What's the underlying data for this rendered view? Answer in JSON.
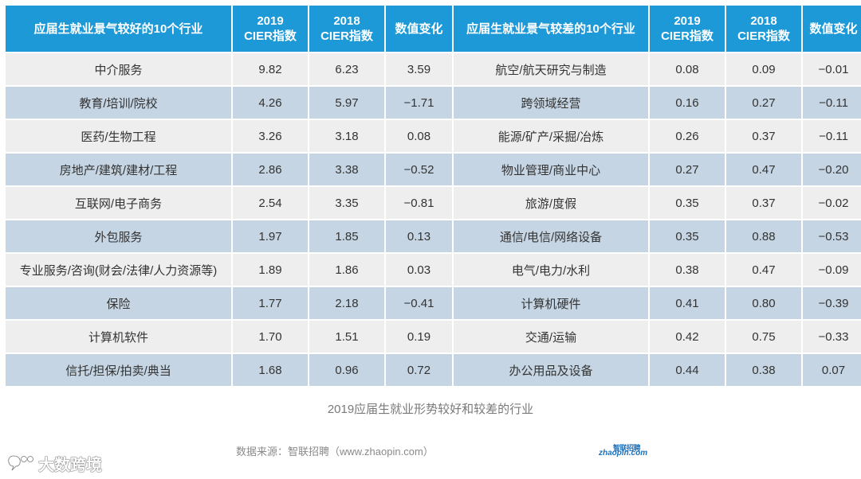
{
  "header": {
    "good_industry": "应届生就业景气较好的10个行业",
    "good_2019_l1": "2019",
    "good_2019_l2": "CIER指数",
    "good_2018_l1": "2018",
    "good_2018_l2": "CIER指数",
    "good_change": "数值变化",
    "bad_industry": "应届生就业景气较差的10个行业",
    "bad_2019_l1": "2019",
    "bad_2019_l2": "CIER指数",
    "bad_2018_l1": "2018",
    "bad_2018_l2": "CIER指数",
    "bad_change": "数值变化"
  },
  "rows": [
    {
      "good_name": "中介服务",
      "good_2019": "9.82",
      "good_2018": "6.23",
      "good_change": "3.59",
      "bad_name": "航空/航天研究与制造",
      "bad_2019": "0.08",
      "bad_2018": "0.09",
      "bad_change": "−0.01"
    },
    {
      "good_name": "教育/培训/院校",
      "good_2019": "4.26",
      "good_2018": "5.97",
      "good_change": "−1.71",
      "bad_name": "跨领域经营",
      "bad_2019": "0.16",
      "bad_2018": "0.27",
      "bad_change": "−0.11"
    },
    {
      "good_name": "医药/生物工程",
      "good_2019": "3.26",
      "good_2018": "3.18",
      "good_change": "0.08",
      "bad_name": "能源/矿产/采掘/冶炼",
      "bad_2019": "0.26",
      "bad_2018": "0.37",
      "bad_change": "−0.11"
    },
    {
      "good_name": "房地产/建筑/建材/工程",
      "good_2019": "2.86",
      "good_2018": "3.38",
      "good_change": "−0.52",
      "bad_name": "物业管理/商业中心",
      "bad_2019": "0.27",
      "bad_2018": "0.47",
      "bad_change": "−0.20"
    },
    {
      "good_name": "互联网/电子商务",
      "good_2019": "2.54",
      "good_2018": "3.35",
      "good_change": "−0.81",
      "bad_name": "旅游/度假",
      "bad_2019": "0.35",
      "bad_2018": "0.37",
      "bad_change": "−0.02"
    },
    {
      "good_name": "外包服务",
      "good_2019": "1.97",
      "good_2018": "1.85",
      "good_change": "0.13",
      "bad_name": "通信/电信/网络设备",
      "bad_2019": "0.35",
      "bad_2018": "0.88",
      "bad_change": "−0.53"
    },
    {
      "good_name": "专业服务/咨询(财会/法律/人力资源等)",
      "good_2019": "1.89",
      "good_2018": "1.86",
      "good_change": "0.03",
      "bad_name": "电气/电力/水利",
      "bad_2019": "0.38",
      "bad_2018": "0.47",
      "bad_change": "−0.09"
    },
    {
      "good_name": "保险",
      "good_2019": "1.77",
      "good_2018": "2.18",
      "good_change": "−0.41",
      "bad_name": "计算机硬件",
      "bad_2019": "0.41",
      "bad_2018": "0.80",
      "bad_change": "−0.39"
    },
    {
      "good_name": "计算机软件",
      "good_2019": "1.70",
      "good_2018": "1.51",
      "good_change": "0.19",
      "bad_name": "交通/运输",
      "bad_2019": "0.42",
      "bad_2018": "0.75",
      "bad_change": "−0.33"
    },
    {
      "good_name": "信托/担保/拍卖/典当",
      "good_2019": "1.68",
      "good_2018": "0.96",
      "good_change": "0.72",
      "bad_name": "办公用品及设备",
      "bad_2019": "0.44",
      "bad_2018": "0.38",
      "bad_change": "0.07"
    }
  ],
  "caption": "2019应届生就业形势较好和较差的行业",
  "source": "数据来源：智联招聘（www.zhaopin.com）",
  "logo": {
    "top": "智联招聘",
    "bottom": "zhaopin.com"
  },
  "watermark": {
    "text": "大数跨境"
  },
  "colors": {
    "header_bg": "#1d99d7",
    "row_light": "#eeeeee",
    "row_blue": "#c6d5e3"
  }
}
